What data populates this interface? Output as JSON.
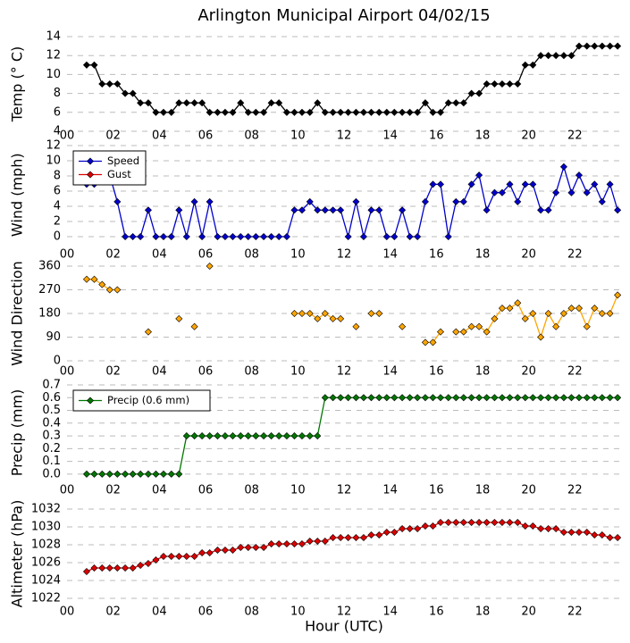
{
  "chart_data": [
    {
      "type": "line",
      "title": "Arlington Municipal Airport 04/02/15",
      "ylabel": "Temp (° C)",
      "x": [
        0.85,
        1.18,
        1.52,
        1.85,
        2.18,
        2.52,
        2.85,
        3.18,
        3.52,
        3.85,
        4.18,
        4.52,
        4.85,
        5.18,
        5.52,
        5.85,
        6.18,
        6.52,
        6.85,
        7.18,
        7.52,
        7.85,
        8.18,
        8.52,
        8.85,
        9.18,
        9.52,
        9.85,
        10.18,
        10.52,
        10.85,
        11.18,
        11.52,
        11.85,
        12.18,
        12.52,
        12.85,
        13.18,
        13.52,
        13.85,
        14.18,
        14.52,
        14.85,
        15.18,
        15.52,
        15.85,
        16.18,
        16.52,
        16.85,
        17.18,
        17.52,
        17.85,
        18.18,
        18.52,
        18.85,
        19.18,
        19.52,
        19.85,
        20.18,
        20.52,
        20.85,
        21.18,
        21.52,
        21.85,
        22.18,
        22.52,
        22.85,
        23.18,
        23.52,
        23.85
      ],
      "series": [
        {
          "color": "#000000",
          "values": [
            11,
            11,
            9,
            9,
            9,
            8,
            8,
            7,
            7,
            6,
            6,
            6,
            7,
            7,
            7,
            7,
            6,
            6,
            6,
            6,
            7,
            6,
            6,
            6,
            7,
            7,
            6,
            6,
            6,
            6,
            7,
            6,
            6,
            6,
            6,
            6,
            6,
            6,
            6,
            6,
            6,
            6,
            6,
            6,
            7,
            6,
            6,
            7,
            7,
            7,
            8,
            8,
            9,
            9,
            9,
            9,
            9,
            11,
            11,
            12,
            12,
            12,
            12,
            12,
            13,
            13,
            13,
            13,
            13,
            13
          ]
        }
      ],
      "xlim": [
        0,
        24
      ],
      "xticks": [
        {
          "value": 0,
          "label": "00"
        },
        {
          "value": 2,
          "label": "02"
        },
        {
          "value": 4,
          "label": "04"
        },
        {
          "value": 6,
          "label": "06"
        },
        {
          "value": 8,
          "label": "08"
        },
        10,
        12,
        14,
        16,
        18,
        20,
        22
      ],
      "ylim": [
        4,
        14
      ],
      "yticks": [
        4,
        6,
        8,
        10,
        12,
        14
      ],
      "grid": true
    },
    {
      "type": "line",
      "ylabel": "Wind (mph)",
      "legend": "upper left",
      "x": [
        0.85,
        1.18,
        1.52,
        1.85,
        2.18,
        2.52,
        2.85,
        3.18,
        3.52,
        3.85,
        4.18,
        4.52,
        4.85,
        5.18,
        5.52,
        5.85,
        6.18,
        6.52,
        6.85,
        7.18,
        7.52,
        7.85,
        8.18,
        8.52,
        8.85,
        9.18,
        9.52,
        9.85,
        10.18,
        10.52,
        10.85,
        11.18,
        11.52,
        11.85,
        12.18,
        12.52,
        12.85,
        13.18,
        13.52,
        13.85,
        14.18,
        14.52,
        14.85,
        15.18,
        15.52,
        15.85,
        16.18,
        16.52,
        16.85,
        17.18,
        17.52,
        17.85,
        18.18,
        18.52,
        18.85,
        19.18,
        19.52,
        19.85,
        20.18,
        20.52,
        20.85,
        21.18,
        21.52,
        21.85,
        22.18,
        22.52,
        22.85,
        23.18,
        23.52,
        23.85
      ],
      "series": [
        {
          "name": "Speed",
          "color": "#0000cc",
          "values": [
            6.9,
            6.9,
            8.1,
            8.1,
            4.6,
            0,
            0,
            0,
            3.5,
            0,
            0,
            0,
            3.5,
            0,
            4.6,
            0,
            4.6,
            0,
            0,
            0,
            0,
            0,
            0,
            0,
            0,
            0,
            0,
            3.5,
            3.5,
            4.6,
            3.5,
            3.5,
            3.5,
            3.5,
            0,
            4.6,
            0,
            3.5,
            3.5,
            0,
            0,
            3.5,
            0,
            0,
            4.6,
            6.9,
            6.9,
            0,
            4.6,
            4.6,
            6.9,
            8.1,
            3.5,
            5.8,
            5.8,
            6.9,
            4.6,
            6.9,
            6.9,
            3.5,
            3.5,
            5.8,
            9.2,
            5.8,
            8.1,
            5.8,
            6.9,
            4.6,
            6.9,
            3.5
          ]
        },
        {
          "name": "Gust",
          "color": "#dd0000",
          "values": [
            null,
            null,
            null,
            null,
            null,
            null,
            null,
            null,
            null,
            null,
            null,
            null,
            null,
            null,
            null,
            null,
            null,
            null,
            null,
            null,
            null,
            null,
            null,
            null,
            null,
            null,
            null,
            null,
            null,
            null,
            null,
            null,
            null,
            null,
            null,
            null,
            null,
            null,
            null,
            null,
            null,
            null,
            null,
            null,
            null,
            null,
            null,
            null,
            null,
            null,
            null,
            null,
            null,
            null,
            null,
            null,
            null,
            null,
            null,
            null,
            null,
            null,
            null,
            null,
            null,
            null,
            null,
            null,
            null,
            null
          ]
        }
      ],
      "xlim": [
        0,
        24
      ],
      "xticks": [
        {
          "value": 0,
          "label": "00"
        },
        {
          "value": 2,
          "label": "02"
        },
        {
          "value": 4,
          "label": "04"
        },
        {
          "value": 6,
          "label": "06"
        },
        {
          "value": 8,
          "label": "08"
        },
        10,
        12,
        14,
        16,
        18,
        20,
        22
      ],
      "ylim": [
        -1,
        12
      ],
      "yticks": [
        0,
        2,
        4,
        6,
        8,
        10,
        12
      ],
      "grid": true
    },
    {
      "type": "line",
      "ylabel": "Wind Direction",
      "x": [
        0.85,
        1.18,
        1.52,
        1.85,
        2.18,
        2.52,
        2.85,
        3.18,
        3.52,
        3.85,
        4.18,
        4.52,
        4.85,
        5.18,
        5.52,
        5.85,
        6.18,
        6.52,
        6.85,
        7.18,
        7.52,
        7.85,
        8.18,
        8.52,
        8.85,
        9.18,
        9.52,
        9.85,
        10.18,
        10.52,
        10.85,
        11.18,
        11.52,
        11.85,
        12.18,
        12.52,
        12.85,
        13.18,
        13.52,
        13.85,
        14.18,
        14.52,
        14.85,
        15.18,
        15.52,
        15.85,
        16.18,
        16.52,
        16.85,
        17.18,
        17.52,
        17.85,
        18.18,
        18.52,
        18.85,
        19.18,
        19.52,
        19.85,
        20.18,
        20.52,
        20.85,
        21.18,
        21.52,
        21.85,
        22.18,
        22.52,
        22.85,
        23.18,
        23.52,
        23.85
      ],
      "series": [
        {
          "color": "#ffa500",
          "values": [
            310,
            310,
            290,
            270,
            270,
            null,
            null,
            null,
            110,
            null,
            null,
            null,
            160,
            null,
            130,
            null,
            360,
            null,
            null,
            null,
            null,
            null,
            null,
            null,
            null,
            null,
            null,
            180,
            180,
            180,
            160,
            180,
            160,
            160,
            null,
            130,
            null,
            180,
            180,
            null,
            null,
            130,
            null,
            null,
            70,
            70,
            110,
            null,
            110,
            110,
            130,
            130,
            110,
            160,
            200,
            200,
            220,
            160,
            180,
            90,
            180,
            130,
            180,
            200,
            200,
            130,
            200,
            180,
            180,
            250
          ]
        }
      ],
      "xlim": [
        0,
        24
      ],
      "xticks": [
        {
          "value": 0,
          "label": "00"
        },
        {
          "value": 2,
          "label": "02"
        },
        {
          "value": 4,
          "label": "04"
        },
        {
          "value": 6,
          "label": "06"
        },
        {
          "value": 8,
          "label": "08"
        },
        10,
        12,
        14,
        16,
        18,
        20,
        22
      ],
      "ylim": [
        0,
        360
      ],
      "yticks": [
        0,
        90,
        180,
        270,
        360
      ],
      "grid": true
    },
    {
      "type": "line",
      "ylabel": "Precip (mm)",
      "legend": "upper left",
      "x": [
        0.85,
        1.18,
        1.52,
        1.85,
        2.18,
        2.52,
        2.85,
        3.18,
        3.52,
        3.85,
        4.18,
        4.52,
        4.85,
        5.18,
        5.52,
        5.85,
        6.18,
        6.52,
        6.85,
        7.18,
        7.52,
        7.85,
        8.18,
        8.52,
        8.85,
        9.18,
        9.52,
        9.85,
        10.18,
        10.52,
        10.85,
        11.18,
        11.52,
        11.85,
        12.18,
        12.52,
        12.85,
        13.18,
        13.52,
        13.85,
        14.18,
        14.52,
        14.85,
        15.18,
        15.52,
        15.85,
        16.18,
        16.52,
        16.85,
        17.18,
        17.52,
        17.85,
        18.18,
        18.52,
        18.85,
        19.18,
        19.52,
        19.85,
        20.18,
        20.52,
        20.85,
        21.18,
        21.52,
        21.85,
        22.18,
        22.52,
        22.85,
        23.18,
        23.52,
        23.85
      ],
      "series": [
        {
          "name": "Precip (0.6 mm)",
          "color": "#007700",
          "values": [
            0,
            0,
            0,
            0,
            0,
            0,
            0,
            0,
            0,
            0,
            0,
            0,
            0,
            0.3,
            0.3,
            0.3,
            0.3,
            0.3,
            0.3,
            0.3,
            0.3,
            0.3,
            0.3,
            0.3,
            0.3,
            0.3,
            0.3,
            0.3,
            0.3,
            0.3,
            0.3,
            0.6,
            0.6,
            0.6,
            0.6,
            0.6,
            0.6,
            0.6,
            0.6,
            0.6,
            0.6,
            0.6,
            0.6,
            0.6,
            0.6,
            0.6,
            0.6,
            0.6,
            0.6,
            0.6,
            0.6,
            0.6,
            0.6,
            0.6,
            0.6,
            0.6,
            0.6,
            0.6,
            0.6,
            0.6,
            0.6,
            0.6,
            0.6,
            0.6,
            0.6,
            0.6,
            0.6,
            0.6,
            0.6,
            0.6
          ]
        }
      ],
      "xlim": [
        0,
        24
      ],
      "xticks": [
        {
          "value": 0,
          "label": "00"
        },
        {
          "value": 2,
          "label": "02"
        },
        {
          "value": 4,
          "label": "04"
        },
        {
          "value": 6,
          "label": "06"
        },
        {
          "value": 8,
          "label": "08"
        },
        10,
        12,
        14,
        16,
        18,
        20,
        22
      ],
      "ylim": [
        -0.05,
        0.7
      ],
      "yticks": [
        {
          "value": 0,
          "label": "0.0"
        },
        0.1,
        0.2,
        0.3,
        0.4,
        0.5,
        0.6,
        0.7
      ],
      "grid": true
    },
    {
      "type": "line",
      "ylabel": "Altimeter (hPa)",
      "xlabel": "Hour (UTC)",
      "x": [
        0.85,
        1.18,
        1.52,
        1.85,
        2.18,
        2.52,
        2.85,
        3.18,
        3.52,
        3.85,
        4.18,
        4.52,
        4.85,
        5.18,
        5.52,
        5.85,
        6.18,
        6.52,
        6.85,
        7.18,
        7.52,
        7.85,
        8.18,
        8.52,
        8.85,
        9.18,
        9.52,
        9.85,
        10.18,
        10.52,
        10.85,
        11.18,
        11.52,
        11.85,
        12.18,
        12.52,
        12.85,
        13.18,
        13.52,
        13.85,
        14.18,
        14.52,
        14.85,
        15.18,
        15.52,
        15.85,
        16.18,
        16.52,
        16.85,
        17.18,
        17.52,
        17.85,
        18.18,
        18.52,
        18.85,
        19.18,
        19.52,
        19.85,
        20.18,
        20.52,
        20.85,
        21.18,
        21.52,
        21.85,
        22.18,
        22.52,
        22.85,
        23.18,
        23.52,
        23.85
      ],
      "series": [
        {
          "color": "#dd0000",
          "values": [
            1025.0,
            1025.4,
            1025.4,
            1025.4,
            1025.4,
            1025.4,
            1025.4,
            1025.7,
            1025.9,
            1026.3,
            1026.7,
            1026.7,
            1026.7,
            1026.7,
            1026.7,
            1027.1,
            1027.1,
            1027.4,
            1027.4,
            1027.4,
            1027.7,
            1027.7,
            1027.7,
            1027.7,
            1028.1,
            1028.1,
            1028.1,
            1028.1,
            1028.1,
            1028.4,
            1028.4,
            1028.4,
            1028.8,
            1028.8,
            1028.8,
            1028.8,
            1028.8,
            1029.1,
            1029.1,
            1029.4,
            1029.4,
            1029.8,
            1029.8,
            1029.8,
            1030.1,
            1030.1,
            1030.5,
            1030.5,
            1030.5,
            1030.5,
            1030.5,
            1030.5,
            1030.5,
            1030.5,
            1030.5,
            1030.5,
            1030.5,
            1030.1,
            1030.1,
            1029.8,
            1029.8,
            1029.8,
            1029.4,
            1029.4,
            1029.4,
            1029.4,
            1029.1,
            1029.1,
            1028.8,
            1028.8
          ]
        }
      ],
      "xlim": [
        0,
        24
      ],
      "xticks": [
        {
          "value": 0,
          "label": "00"
        },
        {
          "value": 2,
          "label": "02"
        },
        {
          "value": 4,
          "label": "04"
        },
        {
          "value": 6,
          "label": "06"
        },
        {
          "value": 8,
          "label": "08"
        },
        10,
        12,
        14,
        16,
        18,
        20,
        22
      ],
      "ylim": [
        1022,
        1032
      ],
      "yticks": [
        1022,
        1024,
        1026,
        1028,
        1030,
        1032
      ],
      "grid": true
    }
  ]
}
